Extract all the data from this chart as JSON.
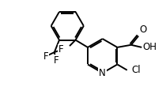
{
  "bg_color": "#ffffff",
  "line_color": "#000000",
  "line_width": 1.4,
  "font_size": 8.5,
  "fig_width": 2.1,
  "fig_height": 1.29,
  "dpi": 100,
  "xlim": [
    0,
    10
  ],
  "ylim": [
    0,
    6.2
  ]
}
